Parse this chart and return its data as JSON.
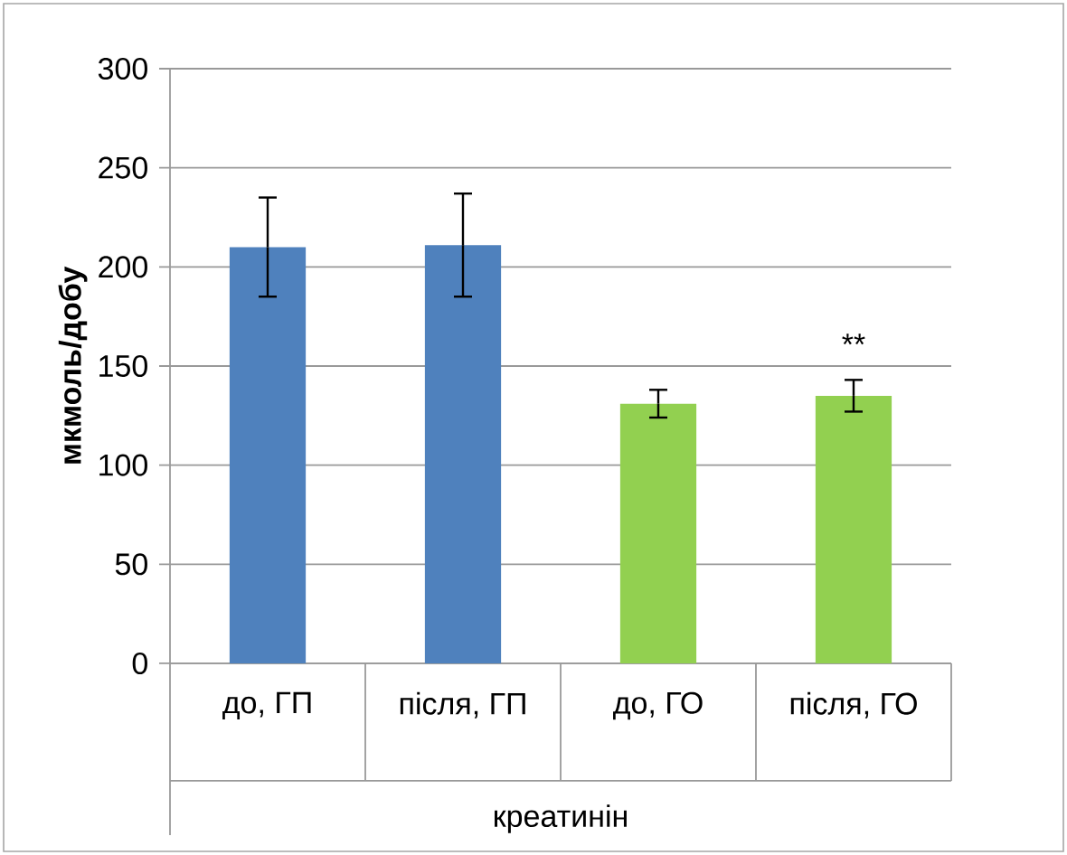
{
  "chart_data": {
    "type": "bar",
    "ylabel": "мкмоль/добу",
    "xlabel": "креатинін",
    "categories": [
      "до, ГП",
      "після, ГП",
      "до, ГО",
      "після, ГО"
    ],
    "values": [
      210,
      211,
      131,
      135
    ],
    "errors": [
      25,
      26,
      7,
      8
    ],
    "colors": [
      "#4f81bd",
      "#4f81bd",
      "#92d050",
      "#92d050"
    ],
    "ylim": [
      0,
      300
    ],
    "yticks": [
      0,
      50,
      100,
      150,
      200,
      250,
      300
    ],
    "grid": "y",
    "annotations": [
      {
        "text": "**",
        "x": "після, ГО",
        "y": 143
      }
    ]
  }
}
